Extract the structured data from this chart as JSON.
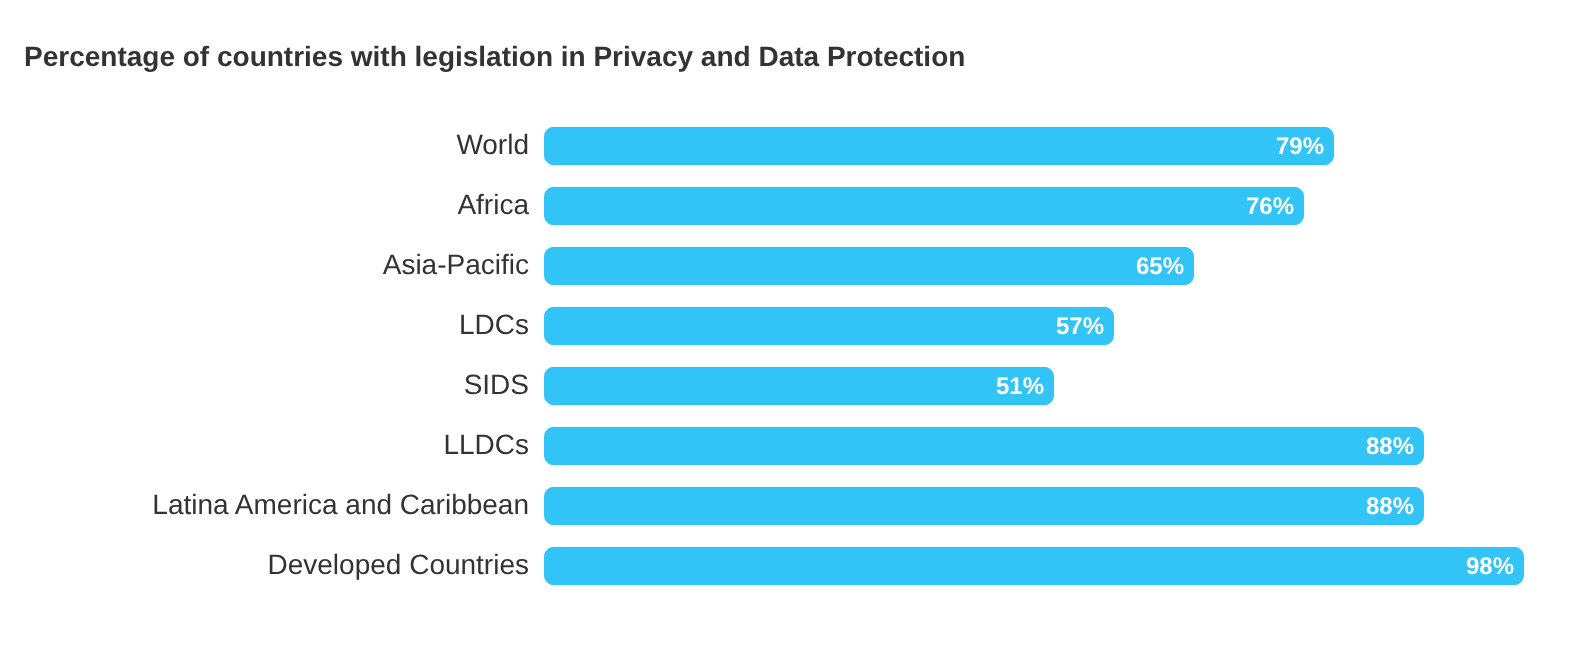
{
  "chart_data": {
    "type": "bar",
    "orientation": "horizontal",
    "title": "Percentage of countries with legislation in Privacy and Data Protection",
    "categories": [
      "World",
      "Africa",
      "Asia-Pacific",
      "LDCs",
      "SIDS",
      "LLDCs",
      "Latina America and Caribbean",
      "Developed Countries"
    ],
    "values": [
      79,
      76,
      65,
      57,
      51,
      88,
      88,
      98
    ],
    "value_labels": [
      "79%",
      "76%",
      "65%",
      "57%",
      "51%",
      "88%",
      "88%",
      "98%"
    ],
    "color": "#33c4f7",
    "tick_labels": "y"
  }
}
